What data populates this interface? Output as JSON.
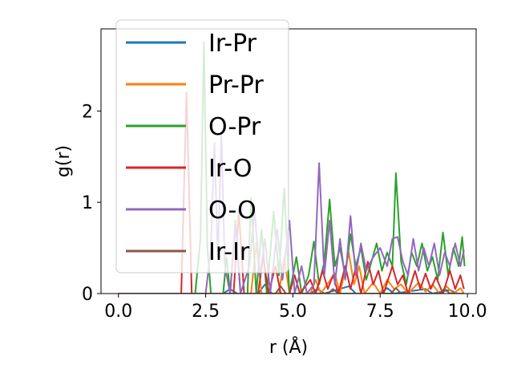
{
  "chart_data": {
    "type": "line",
    "xlabel": "r (Å)",
    "ylabel": "g(r)",
    "xlim": [
      -0.5,
      10.25
    ],
    "ylim": [
      0,
      2.9
    ],
    "xticks": [
      0.0,
      2.5,
      5.0,
      7.5,
      10.0
    ],
    "xtick_labels": [
      "0.0",
      "2.5",
      "5.0",
      "7.5",
      "10.0"
    ],
    "yticks": [
      0,
      1,
      2
    ],
    "ytick_labels": [
      "0",
      "1",
      "2"
    ],
    "grid": false,
    "legend_position": "upper-left",
    "series": [
      {
        "name": "Ir-Pr",
        "color": "#1f77b4",
        "points": [
          [
            0,
            0
          ],
          [
            3.0,
            0
          ],
          [
            3.2,
            0.05
          ],
          [
            3.4,
            0
          ],
          [
            4.0,
            0
          ],
          [
            4.2,
            0.1
          ],
          [
            4.4,
            0
          ],
          [
            5.5,
            0
          ],
          [
            5.7,
            0.05
          ],
          [
            5.9,
            0
          ],
          [
            6.6,
            0.08
          ],
          [
            6.8,
            0
          ],
          [
            7.5,
            0
          ],
          [
            7.7,
            0.06
          ],
          [
            7.9,
            0
          ],
          [
            8.8,
            0.05
          ],
          [
            9.0,
            0
          ],
          [
            9.5,
            0.04
          ],
          [
            9.7,
            0
          ],
          [
            9.9,
            0
          ]
        ]
      },
      {
        "name": "Pr-Pr",
        "color": "#ff7f0e",
        "points": [
          [
            0,
            0
          ],
          [
            3.8,
            0
          ],
          [
            3.95,
            0.55
          ],
          [
            4.1,
            0
          ],
          [
            4.6,
            0
          ],
          [
            4.75,
            0.4
          ],
          [
            4.9,
            0
          ],
          [
            5.5,
            0
          ],
          [
            5.65,
            0.15
          ],
          [
            5.8,
            0
          ],
          [
            6.2,
            0.22
          ],
          [
            6.35,
            0
          ],
          [
            6.6,
            0.45
          ],
          [
            6.75,
            0.1
          ],
          [
            6.9,
            0.3
          ],
          [
            7.05,
            0
          ],
          [
            7.3,
            0.12
          ],
          [
            7.5,
            0
          ],
          [
            7.7,
            0.15
          ],
          [
            7.9,
            0.05
          ],
          [
            8.1,
            0.1
          ],
          [
            8.3,
            0
          ],
          [
            8.6,
            0.12
          ],
          [
            8.8,
            0.02
          ],
          [
            9.0,
            0.1
          ],
          [
            9.2,
            0
          ],
          [
            9.4,
            0.08
          ],
          [
            9.6,
            0
          ],
          [
            9.8,
            0.06
          ],
          [
            9.9,
            0
          ]
        ]
      },
      {
        "name": "O-Pr",
        "color": "#2ca02c",
        "points": [
          [
            0,
            0
          ],
          [
            2.2,
            0
          ],
          [
            2.35,
            0.6
          ],
          [
            2.45,
            2.75
          ],
          [
            2.55,
            0.5
          ],
          [
            2.65,
            0
          ],
          [
            3.0,
            0
          ],
          [
            3.1,
            0.4
          ],
          [
            3.2,
            0
          ],
          [
            3.35,
            0.8
          ],
          [
            3.5,
            0
          ],
          [
            3.7,
            0
          ],
          [
            3.8,
            1.05
          ],
          [
            3.95,
            0
          ],
          [
            4.1,
            0.7
          ],
          [
            4.25,
            0
          ],
          [
            4.45,
            0.9
          ],
          [
            4.6,
            0.2
          ],
          [
            4.75,
            1.15
          ],
          [
            4.9,
            0
          ],
          [
            5.1,
            0.4
          ],
          [
            5.25,
            0
          ],
          [
            5.45,
            0.2
          ],
          [
            5.6,
            0.57
          ],
          [
            5.75,
            0.1
          ],
          [
            5.9,
            0.35
          ],
          [
            6.05,
            1.03
          ],
          [
            6.2,
            0.3
          ],
          [
            6.35,
            0.5
          ],
          [
            6.5,
            0.2
          ],
          [
            6.65,
            0.65
          ],
          [
            6.8,
            0.3
          ],
          [
            6.95,
            0.5
          ],
          [
            7.1,
            0.15
          ],
          [
            7.25,
            0.35
          ],
          [
            7.4,
            0.55
          ],
          [
            7.55,
            0.25
          ],
          [
            7.7,
            0.45
          ],
          [
            7.85,
            0.3
          ],
          [
            7.95,
            1.32
          ],
          [
            8.1,
            0.35
          ],
          [
            8.25,
            0.1
          ],
          [
            8.4,
            0.45
          ],
          [
            8.55,
            0.3
          ],
          [
            8.7,
            0.55
          ],
          [
            8.85,
            0.25
          ],
          [
            9.0,
            0.4
          ],
          [
            9.15,
            0.15
          ],
          [
            9.3,
            0.67
          ],
          [
            9.45,
            0.2
          ],
          [
            9.6,
            0.5
          ],
          [
            9.75,
            0.3
          ],
          [
            9.85,
            0.62
          ],
          [
            9.92,
            0.3
          ]
        ]
      },
      {
        "name": "Ir-O",
        "color": "#d62728",
        "points": [
          [
            0,
            0
          ],
          [
            1.8,
            0
          ],
          [
            1.95,
            2.2
          ],
          [
            2.1,
            0
          ],
          [
            3.3,
            0
          ],
          [
            3.45,
            0.9
          ],
          [
            3.6,
            0
          ],
          [
            4.0,
            0
          ],
          [
            4.15,
            0.4
          ],
          [
            4.3,
            0
          ],
          [
            4.5,
            0.3
          ],
          [
            4.65,
            0
          ],
          [
            4.9,
            0
          ],
          [
            5.05,
            0.2
          ],
          [
            5.2,
            0
          ],
          [
            5.5,
            0.15
          ],
          [
            5.65,
            0
          ],
          [
            5.85,
            0.25
          ],
          [
            6.0,
            0.05
          ],
          [
            6.15,
            0.2
          ],
          [
            6.3,
            0
          ],
          [
            6.5,
            0.3
          ],
          [
            6.65,
            0.05
          ],
          [
            6.8,
            0.28
          ],
          [
            6.95,
            0
          ],
          [
            7.15,
            0.35
          ],
          [
            7.3,
            0.1
          ],
          [
            7.45,
            0.25
          ],
          [
            7.6,
            0
          ],
          [
            7.85,
            0.3
          ],
          [
            8.0,
            0.1
          ],
          [
            8.15,
            0.2
          ],
          [
            8.3,
            0
          ],
          [
            8.5,
            0.25
          ],
          [
            8.65,
            0.05
          ],
          [
            8.8,
            0.22
          ],
          [
            8.95,
            0.05
          ],
          [
            9.1,
            0.18
          ],
          [
            9.3,
            0
          ],
          [
            9.5,
            0.25
          ],
          [
            9.65,
            0.05
          ],
          [
            9.8,
            0.2
          ],
          [
            9.9,
            0.05
          ]
        ]
      },
      {
        "name": "O-O",
        "color": "#9467bd",
        "points": [
          [
            0,
            0
          ],
          [
            2.5,
            0
          ],
          [
            2.65,
            0.5
          ],
          [
            2.75,
            1.65
          ],
          [
            2.85,
            0.4
          ],
          [
            2.95,
            1.75
          ],
          [
            3.05,
            0.3
          ],
          [
            3.2,
            0
          ],
          [
            3.35,
            0.75
          ],
          [
            3.5,
            0
          ],
          [
            3.75,
            0.3
          ],
          [
            3.9,
            0.9
          ],
          [
            4.05,
            0.2
          ],
          [
            4.2,
            0.6
          ],
          [
            4.35,
            0
          ],
          [
            4.55,
            0.7
          ],
          [
            4.7,
            0.15
          ],
          [
            4.9,
            0.8
          ],
          [
            5.05,
            0
          ],
          [
            5.25,
            0.3
          ],
          [
            5.4,
            0
          ],
          [
            5.6,
            0.1
          ],
          [
            5.75,
            1.43
          ],
          [
            5.9,
            0.2
          ],
          [
            6.05,
            0.8
          ],
          [
            6.2,
            0.1
          ],
          [
            6.35,
            0.6
          ],
          [
            6.5,
            0.15
          ],
          [
            6.65,
            0.85
          ],
          [
            6.8,
            0.2
          ],
          [
            6.95,
            0.55
          ],
          [
            7.1,
            0.25
          ],
          [
            7.3,
            0.4
          ],
          [
            7.5,
            0.5
          ],
          [
            7.7,
            0.3
          ],
          [
            7.85,
            0.6
          ],
          [
            8.0,
            0.62
          ],
          [
            8.15,
            0.35
          ],
          [
            8.3,
            0.2
          ],
          [
            8.45,
            0.6
          ],
          [
            8.6,
            0.25
          ],
          [
            8.75,
            0.5
          ],
          [
            8.9,
            0.3
          ],
          [
            9.05,
            0.55
          ],
          [
            9.2,
            0.2
          ],
          [
            9.35,
            0.45
          ],
          [
            9.5,
            0.3
          ],
          [
            9.65,
            0.55
          ],
          [
            9.8,
            0.3
          ],
          [
            9.9,
            0.48
          ]
        ]
      },
      {
        "name": "Ir-Ir",
        "color": "#8c564b",
        "points": [
          [
            0,
            0
          ],
          [
            4.5,
            0
          ],
          [
            4.65,
            0.08
          ],
          [
            4.8,
            0
          ],
          [
            6.0,
            0
          ],
          [
            6.15,
            0.05
          ],
          [
            6.3,
            0
          ],
          [
            7.8,
            0
          ],
          [
            7.95,
            0.06
          ],
          [
            8.1,
            0
          ],
          [
            9.2,
            0
          ],
          [
            9.35,
            0.05
          ],
          [
            9.5,
            0
          ],
          [
            9.9,
            0
          ]
        ]
      }
    ]
  }
}
